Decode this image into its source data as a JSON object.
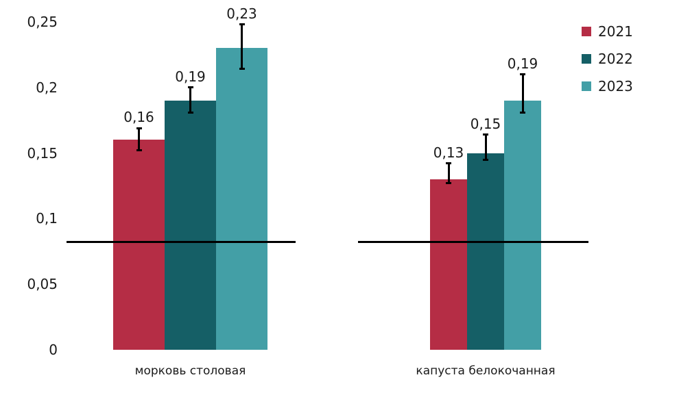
{
  "chart_data": {
    "type": "bar",
    "title": "",
    "xlabel": "",
    "ylabel": "",
    "ylim": [
      0,
      0.25
    ],
    "grid": false,
    "legend_position": "top-right",
    "y_ticks": [
      "0",
      "0,05",
      "0,1",
      "0,15",
      "0,2",
      "0,25"
    ],
    "categories": [
      "морковь столовая",
      "капуста белокочанная"
    ],
    "series": [
      {
        "name": "2021",
        "color": "#B52D45",
        "values": [
          0.16,
          0.13
        ],
        "labels": [
          "0,16",
          "0,13"
        ],
        "error_low": [
          0.152,
          0.127
        ],
        "error_high": [
          0.169,
          0.142
        ]
      },
      {
        "name": "2022",
        "color": "#155F66",
        "values": [
          0.19,
          0.15
        ],
        "labels": [
          "0,19",
          "0,15"
        ],
        "error_low": [
          0.181,
          0.145
        ],
        "error_high": [
          0.2,
          0.164
        ]
      },
      {
        "name": "2023",
        "color": "#439FA6",
        "values": [
          0.23,
          0.19
        ],
        "labels": [
          "0,23",
          "0,19"
        ],
        "error_low": [
          0.214,
          0.181
        ],
        "error_high": [
          0.248,
          0.21
        ]
      }
    ],
    "reference_line": {
      "value": 0.0825,
      "color": "#000000"
    }
  },
  "legend": {
    "items": [
      {
        "label": "2021",
        "color": "#B52D45"
      },
      {
        "label": "2022",
        "color": "#155F66"
      },
      {
        "label": "2023",
        "color": "#439FA6"
      }
    ]
  }
}
